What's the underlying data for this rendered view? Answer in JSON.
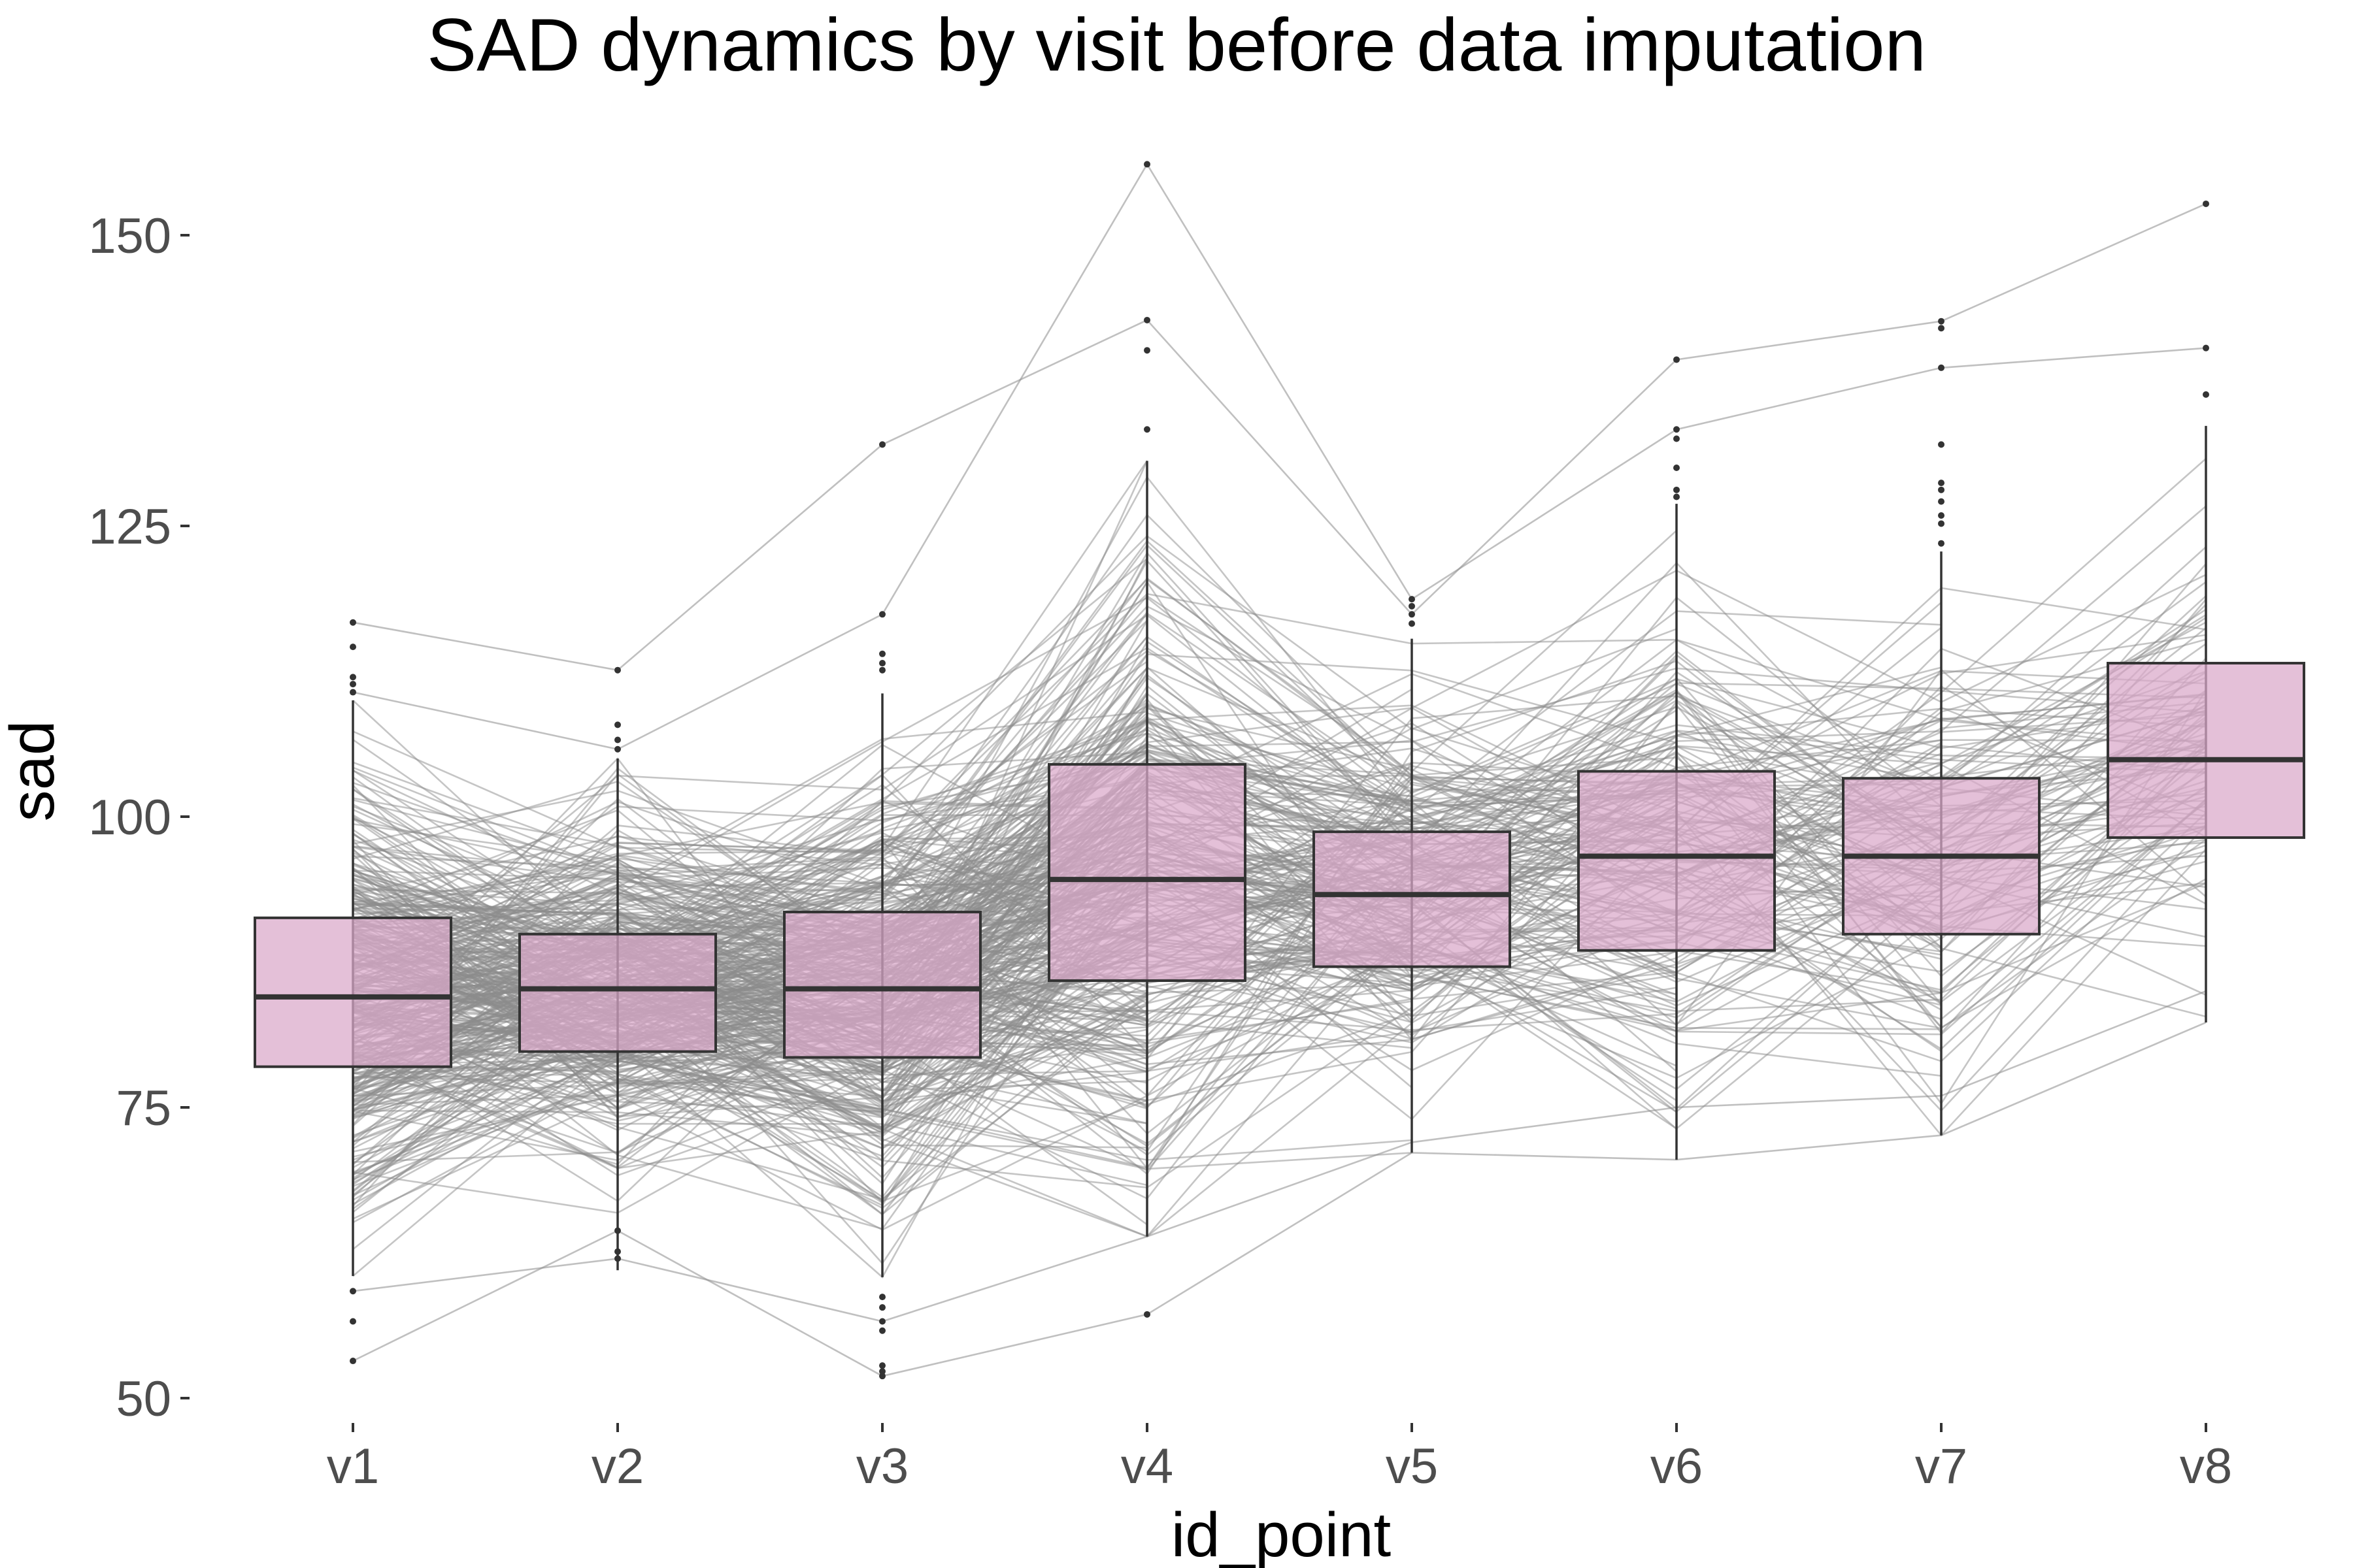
{
  "chart_data": {
    "type": "boxplot",
    "title": "SAD dynamics by visit before data imputation",
    "xlabel": "id_point",
    "ylabel": "sad",
    "categories": [
      "v1",
      "v2",
      "v3",
      "v4",
      "v5",
      "v6",
      "v7",
      "v8"
    ],
    "yticks": [
      50,
      75,
      100,
      125,
      150
    ],
    "ylim": [
      47,
      158
    ],
    "grid": false,
    "legend": "none",
    "box_fill": "#d9a8c9",
    "box_stroke": "#333333",
    "line_color": "#8c8c8c",
    "boxes": [
      {
        "category": "v1",
        "lower_whisker": 60.5,
        "q1": 78.5,
        "median": 84.5,
        "q3": 91.3,
        "upper_whisker": 110.0,
        "outliers": [
          116.7,
          114.6,
          112.0,
          111.4,
          110.7,
          59.2,
          56.6,
          53.2
        ]
      },
      {
        "category": "v2",
        "lower_whisker": 61.0,
        "q1": 79.8,
        "median": 85.2,
        "q3": 89.9,
        "upper_whisker": 105.0,
        "outliers": [
          112.6,
          107.9,
          106.6,
          105.8,
          64.4,
          62.6,
          62.0
        ]
      },
      {
        "category": "v3",
        "lower_whisker": 60.4,
        "q1": 79.3,
        "median": 85.2,
        "q3": 91.8,
        "upper_whisker": 110.6,
        "outliers": [
          132.0,
          117.4,
          114.0,
          113.2,
          112.6,
          58.7,
          57.8,
          56.6,
          55.8,
          52.8,
          52.3,
          51.9
        ]
      },
      {
        "category": "v4",
        "lower_whisker": 63.9,
        "q1": 85.9,
        "median": 94.6,
        "q3": 104.5,
        "upper_whisker": 130.6,
        "outliers": [
          156.1,
          142.7,
          140.1,
          133.3,
          57.2
        ]
      },
      {
        "category": "v5",
        "lower_whisker": 71.1,
        "q1": 87.1,
        "median": 93.3,
        "q3": 98.7,
        "upper_whisker": 115.3,
        "outliers": [
          118.7,
          118.1,
          117.4,
          116.6
        ]
      },
      {
        "category": "v6",
        "lower_whisker": 70.5,
        "q1": 88.5,
        "median": 96.6,
        "q3": 103.9,
        "upper_whisker": 126.9,
        "outliers": [
          139.3,
          133.3,
          132.5,
          130.0,
          128.1,
          127.5
        ]
      },
      {
        "category": "v7",
        "lower_whisker": 72.6,
        "q1": 89.9,
        "median": 96.6,
        "q3": 103.3,
        "upper_whisker": 122.8,
        "outliers": [
          142.6,
          142.0,
          138.6,
          132.0,
          128.7,
          128.1,
          127.1,
          125.9,
          125.2,
          123.5
        ]
      },
      {
        "category": "v8",
        "lower_whisker": 82.3,
        "q1": 98.2,
        "median": 104.9,
        "q3": 113.2,
        "upper_whisker": 133.6,
        "outliers": [
          152.7,
          140.3,
          136.3
        ]
      }
    ]
  }
}
